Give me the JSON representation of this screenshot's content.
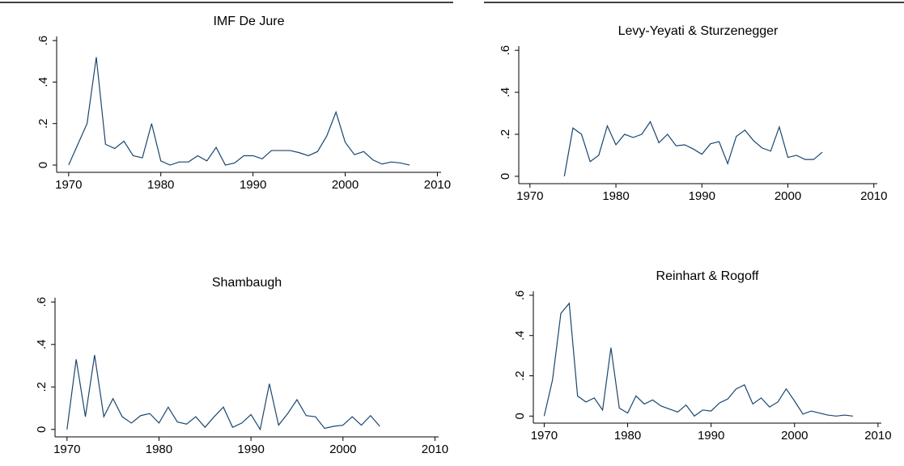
{
  "chart_data": [
    {
      "type": "line",
      "title": "IMF De Jure",
      "x": [
        1970,
        1971,
        1972,
        1973,
        1974,
        1975,
        1976,
        1977,
        1978,
        1979,
        1980,
        1981,
        1982,
        1983,
        1984,
        1985,
        1986,
        1987,
        1988,
        1989,
        1990,
        1991,
        1992,
        1993,
        1994,
        1995,
        1996,
        1997,
        1998,
        1999,
        2000,
        2001,
        2002,
        2003,
        2004,
        2005,
        2006,
        2007
      ],
      "series": [
        {
          "color": "#1a476f",
          "values": [
            0,
            0.1,
            0.2,
            0.52,
            0.1,
            0.08,
            0.115,
            0.045,
            0.035,
            0.2,
            0.02,
            0,
            0.015,
            0.015,
            0.045,
            0.02,
            0.085,
            0,
            0.01,
            0.045,
            0.045,
            0.03,
            0.07,
            0.07,
            0.07,
            0.06,
            0.045,
            0.065,
            0.14,
            0.255,
            0.11,
            0.05,
            0.065,
            0.025,
            0.005,
            0.015,
            0.01,
            0
          ]
        }
      ],
      "xlim": [
        1968.7,
        2010.4
      ],
      "xticks": [
        1970,
        1980,
        1990,
        2000,
        2010
      ],
      "ylim": [
        -0.035,
        0.62
      ],
      "yticks": [
        0,
        {
          "value": 0.2,
          "label": ".2"
        },
        {
          "value": 0.4,
          "label": ".4"
        },
        {
          "value": 0.6,
          "label": ".6"
        }
      ]
    },
    {
      "type": "line",
      "title": "Levy-Yeyati & Sturzenegger",
      "x": [
        1974,
        1975,
        1976,
        1977,
        1978,
        1979,
        1980,
        1981,
        1982,
        1983,
        1984,
        1985,
        1986,
        1987,
        1988,
        1989,
        1990,
        1991,
        1992,
        1993,
        1994,
        1995,
        1996,
        1997,
        1998,
        1999,
        2000,
        2001,
        2002,
        2003,
        2004
      ],
      "series": [
        {
          "color": "#1a476f",
          "values": [
            0,
            0.23,
            0.2,
            0.07,
            0.1,
            0.24,
            0.15,
            0.2,
            0.185,
            0.2,
            0.26,
            0.16,
            0.2,
            0.145,
            0.15,
            0.13,
            0.105,
            0.155,
            0.165,
            0.06,
            0.19,
            0.22,
            0.17,
            0.135,
            0.12,
            0.235,
            0.09,
            0.1,
            0.08,
            0.08,
            0.115
          ]
        }
      ],
      "xlim": [
        1968.7,
        2010.4
      ],
      "xticks": [
        1970,
        1980,
        1990,
        2000,
        2010
      ],
      "ylim": [
        -0.035,
        0.62
      ],
      "yticks": [
        0,
        {
          "value": 0.2,
          "label": ".2"
        },
        {
          "value": 0.4,
          "label": ".4"
        },
        {
          "value": 0.6,
          "label": ".6"
        }
      ]
    },
    {
      "type": "line",
      "title": "Shambaugh",
      "x": [
        1970,
        1971,
        1972,
        1973,
        1974,
        1975,
        1976,
        1977,
        1978,
        1979,
        1980,
        1981,
        1982,
        1983,
        1984,
        1985,
        1986,
        1987,
        1988,
        1989,
        1990,
        1991,
        1992,
        1993,
        1994,
        1995,
        1996,
        1997,
        1998,
        1999,
        2000,
        2001,
        2002,
        2003,
        2004
      ],
      "series": [
        {
          "color": "#1a476f",
          "values": [
            0,
            0.33,
            0.06,
            0.35,
            0.06,
            0.145,
            0.06,
            0.03,
            0.065,
            0.075,
            0.03,
            0.105,
            0.035,
            0.025,
            0.06,
            0.01,
            0.06,
            0.105,
            0.01,
            0.03,
            0.07,
            0,
            0.215,
            0.02,
            0.075,
            0.14,
            0.065,
            0.06,
            0.005,
            0.015,
            0.02,
            0.06,
            0.02,
            0.065,
            0.015
          ]
        }
      ],
      "xlim": [
        1968.7,
        2010.4
      ],
      "xticks": [
        1970,
        1980,
        1990,
        2000,
        2010
      ],
      "ylim": [
        -0.035,
        0.62
      ],
      "yticks": [
        0,
        {
          "value": 0.2,
          "label": ".2"
        },
        {
          "value": 0.4,
          "label": ".4"
        },
        {
          "value": 0.6,
          "label": ".6"
        }
      ]
    },
    {
      "type": "line",
      "title": "Reinhart & Rogoff",
      "x": [
        1970,
        1971,
        1972,
        1973,
        1974,
        1975,
        1976,
        1977,
        1978,
        1979,
        1980,
        1981,
        1982,
        1983,
        1984,
        1985,
        1986,
        1987,
        1988,
        1989,
        1990,
        1991,
        1992,
        1993,
        1994,
        1995,
        1996,
        1997,
        1998,
        1999,
        2000,
        2001,
        2002,
        2003,
        2004,
        2005,
        2006,
        2007
      ],
      "series": [
        {
          "color": "#1a476f",
          "values": [
            0,
            0.18,
            0.51,
            0.56,
            0.1,
            0.07,
            0.09,
            0.03,
            0.34,
            0.04,
            0.015,
            0.1,
            0.06,
            0.08,
            0.05,
            0.035,
            0.02,
            0.055,
            0,
            0.03,
            0.025,
            0.065,
            0.085,
            0.135,
            0.155,
            0.06,
            0.09,
            0.045,
            0.07,
            0.135,
            0.075,
            0.01,
            0.025,
            0.015,
            0.005,
            0,
            0.005,
            0
          ]
        }
      ],
      "xlim": [
        1968.7,
        2010.4
      ],
      "xticks": [
        1970,
        1980,
        1990,
        2000,
        2010
      ],
      "ylim": [
        -0.035,
        0.62
      ],
      "yticks": [
        0,
        {
          "value": 0.2,
          "label": ".2"
        },
        {
          "value": 0.4,
          "label": ".4"
        },
        {
          "value": 0.6,
          "label": ".6"
        }
      ]
    }
  ]
}
